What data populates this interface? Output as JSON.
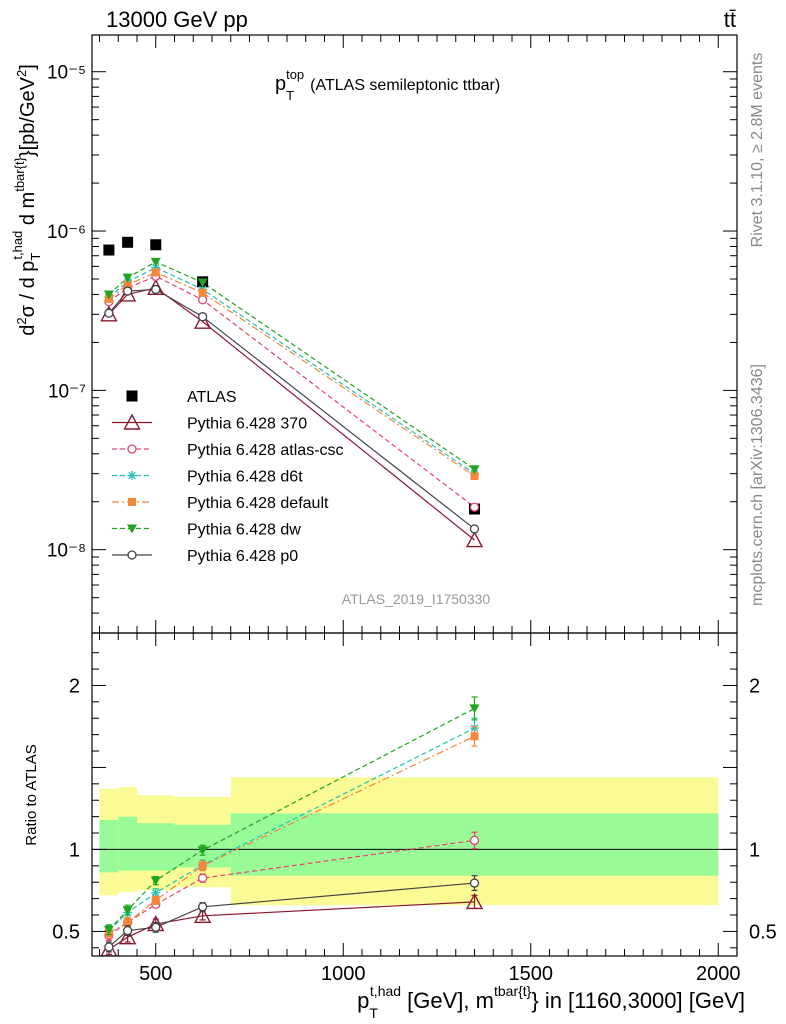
{
  "header": {
    "beam": "13000 GeV pp",
    "process": "tt̄"
  },
  "side_labels": {
    "rivet": "Rivet 3.1.10, ≥ 2.8M events",
    "mcplots": "mcplots.cern.ch [arXiv:1306.3436]"
  },
  "chart_data": [
    {
      "type": "scatter",
      "title": "p_T^top (ATLAS semileptonic ttbar)",
      "title_parts": {
        "main": "p",
        "sub": "T",
        "sup": "top",
        "rest": "(ATLAS semileptonic ttbar)"
      },
      "analysis_label": "ATLAS_2019_I1750330",
      "ylabel": "d²σ / d p_T^{t,had} d m^{tbar{t}} [pb/GeV²]",
      "yscale": "log",
      "xlim": [
        330,
        2050
      ],
      "ylim": [
        3e-09,
        1.7e-05
      ],
      "x_ticks": [
        500,
        1000,
        1500,
        2000
      ],
      "y_ticks": [
        1e-08,
        1e-07,
        1e-06,
        1e-05
      ],
      "y_tick_labels": [
        "10⁻⁸",
        "10⁻⁷",
        "10⁻⁶",
        "10⁻⁵"
      ],
      "legend_position": "middle-left",
      "series": [
        {
          "name": "ATLAS",
          "color": "#000000",
          "marker": "filled-square",
          "line": "none",
          "x": [
            375,
            425,
            500,
            625,
            1350
          ],
          "y": [
            7.6e-07,
            8.5e-07,
            8.2e-07,
            4.8e-07,
            1.8e-08
          ]
        },
        {
          "name": "Pythia 6.428 370",
          "color": "#8b1a2e",
          "marker": "open-triangle",
          "line": "solid",
          "x": [
            375,
            425,
            500,
            625,
            1350
          ],
          "y": [
            3e-07,
            4e-07,
            4.4e-07,
            2.7e-07,
            1.15e-08
          ]
        },
        {
          "name": "Pythia 6.428 atlas-csc",
          "color": "#e8436e",
          "marker": "open-circle",
          "line": "dashed",
          "x": [
            375,
            425,
            500,
            625,
            1350
          ],
          "y": [
            3.6e-07,
            4.4e-07,
            5.2e-07,
            3.7e-07,
            1.85e-08
          ]
        },
        {
          "name": "Pythia 6.428 d6t",
          "color": "#22c3b0",
          "marker": "asterisk",
          "line": "dashed",
          "x": [
            375,
            425,
            500,
            625,
            1350
          ],
          "y": [
            3.85e-07,
            4.8e-07,
            5.9e-07,
            4.3e-07,
            3e-08
          ]
        },
        {
          "name": "Pythia 6.428 default",
          "color": "#f5873a",
          "marker": "filled-square-small",
          "line": "dashdot",
          "x": [
            375,
            425,
            500,
            625,
            1350
          ],
          "y": [
            3.75e-07,
            4.6e-07,
            5.5e-07,
            4.1e-07,
            2.9e-08
          ]
        },
        {
          "name": "Pythia 6.428 dw",
          "color": "#1fa51f",
          "marker": "filled-triangle-down",
          "line": "dashed",
          "x": [
            375,
            425,
            500,
            625,
            1350
          ],
          "y": [
            4e-07,
            5.1e-07,
            6.4e-07,
            4.75e-07,
            3.2e-08
          ]
        },
        {
          "name": "Pythia 6.428 p0",
          "color": "#454545",
          "marker": "open-circle",
          "line": "solid",
          "x": [
            375,
            425,
            500,
            625,
            1350
          ],
          "y": [
            3.05e-07,
            4.2e-07,
            4.3e-07,
            2.9e-07,
            1.35e-08
          ]
        }
      ]
    },
    {
      "type": "scatter",
      "ylabel": "Ratio to ATLAS",
      "xlabel": "p_T^{t,had} [GeV], m^{tbar{t}} in [1160,3000] [GeV]",
      "xlim": [
        330,
        2050
      ],
      "ylim": [
        0.35,
        2.32
      ],
      "x_ticks": [
        500,
        1000,
        1500,
        2000
      ],
      "y_ticks": [
        0.5,
        1,
        2
      ],
      "reference_line": 1,
      "bins": [
        {
          "x": [
            350,
            400
          ],
          "inner": [
            0.86,
            1.18
          ],
          "outer": [
            0.72,
            1.37
          ]
        },
        {
          "x": [
            400,
            450
          ],
          "inner": [
            0.87,
            1.2
          ],
          "outer": [
            0.74,
            1.38
          ]
        },
        {
          "x": [
            450,
            550
          ],
          "inner": [
            0.87,
            1.16
          ],
          "outer": [
            0.75,
            1.33
          ]
        },
        {
          "x": [
            550,
            700
          ],
          "inner": [
            0.89,
            1.15
          ],
          "outer": [
            0.77,
            1.32
          ]
        },
        {
          "x": [
            700,
            2000
          ],
          "inner": [
            0.84,
            1.22
          ],
          "outer": [
            0.66,
            1.44
          ]
        }
      ],
      "series": [
        {
          "name": "Pythia 6.428 370",
          "color": "#8b1a2e",
          "marker": "open-triangle",
          "line": "solid",
          "x": [
            375,
            425,
            500,
            625,
            1350
          ],
          "y": [
            0.39,
            0.465,
            0.545,
            0.595,
            0.68
          ],
          "err": [
            0.03,
            0.03,
            0.03,
            0.025,
            0.04
          ]
        },
        {
          "name": "Pythia 6.428 atlas-csc",
          "color": "#e8436e",
          "marker": "open-circle",
          "line": "dashed",
          "x": [
            375,
            425,
            500,
            625,
            1350
          ],
          "y": [
            0.475,
            0.555,
            0.665,
            0.825,
            1.055
          ],
          "err": [
            0.03,
            0.03,
            0.02,
            0.025,
            0.05
          ]
        },
        {
          "name": "Pythia 6.428 d6t",
          "color": "#22c3b0",
          "marker": "asterisk",
          "line": "dashed",
          "x": [
            375,
            425,
            500,
            625,
            1350
          ],
          "y": [
            0.505,
            0.615,
            0.735,
            0.905,
            1.74
          ],
          "err": [
            0.03,
            0.03,
            0.025,
            0.03,
            0.06
          ]
        },
        {
          "name": "Pythia 6.428 default",
          "color": "#f5873a",
          "marker": "filled-square-small",
          "line": "dashdot",
          "x": [
            375,
            425,
            500,
            625,
            1350
          ],
          "y": [
            0.49,
            0.555,
            0.69,
            0.9,
            1.69
          ],
          "err": [
            0.03,
            0.03,
            0.025,
            0.03,
            0.06
          ]
        },
        {
          "name": "Pythia 6.428 dw",
          "color": "#1fa51f",
          "marker": "filled-triangle-down",
          "line": "dashed",
          "x": [
            375,
            425,
            500,
            625,
            1350
          ],
          "y": [
            0.51,
            0.63,
            0.81,
            0.995,
            1.86
          ],
          "err": [
            0.03,
            0.03,
            0.025,
            0.03,
            0.07
          ]
        },
        {
          "name": "Pythia 6.428 p0",
          "color": "#454545",
          "marker": "open-circle",
          "line": "solid",
          "x": [
            375,
            425,
            500,
            625,
            1350
          ],
          "y": [
            0.405,
            0.505,
            0.525,
            0.65,
            0.795
          ],
          "err": [
            0.03,
            0.03,
            0.03,
            0.025,
            0.045
          ]
        }
      ]
    }
  ]
}
